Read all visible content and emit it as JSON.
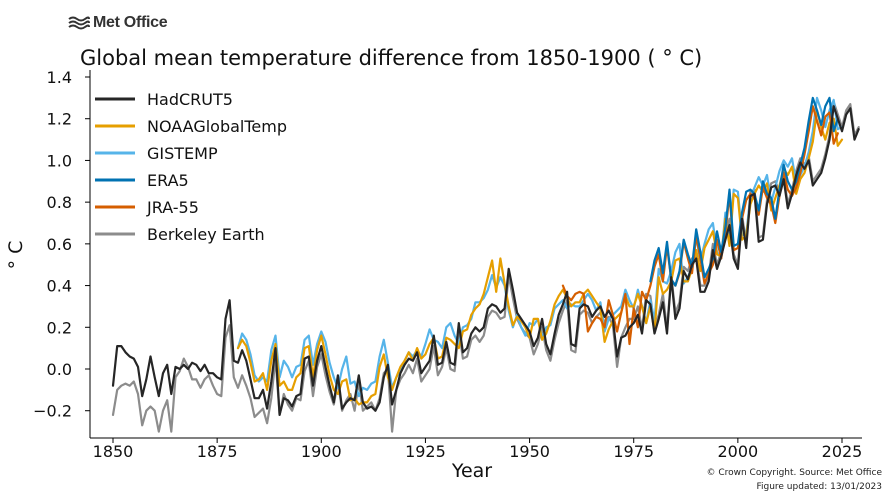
{
  "brand": {
    "name": "Met Office",
    "icon": "met-office-wave-icon"
  },
  "footer": {
    "copyright": "© Crown Copyright. Source: Met Office",
    "updated": "Figure updated: 13/01/2023"
  },
  "chart_data": {
    "type": "line",
    "title": "Global mean temperature difference from 1850-1900 ( ° C)",
    "xlabel": "Year",
    "ylabel": "° C",
    "xlim": [
      1845,
      2027
    ],
    "ylim": [
      -0.3,
      1.4
    ],
    "xticks": [
      1850,
      1875,
      1900,
      1925,
      1950,
      1975,
      2000,
      2025
    ],
    "yticks": [
      -0.2,
      0.0,
      0.2,
      0.4,
      0.6,
      0.8,
      1.0,
      1.2,
      1.4
    ],
    "ytick_labels": [
      "−0.2",
      "0.0",
      "0.2",
      "0.4",
      "0.6",
      "0.8",
      "1.0",
      "1.2",
      "1.4"
    ],
    "grid": false,
    "legend_position": "top-left",
    "series": [
      {
        "name": "HadCRUT5",
        "color": "#262626",
        "start": 1850,
        "values": [
          -0.08,
          0.11,
          0.11,
          0.08,
          0.06,
          0.05,
          0.01,
          -0.13,
          -0.05,
          0.06,
          -0.04,
          -0.13,
          -0.02,
          0.02,
          -0.12,
          0.01,
          0.0,
          0.02,
          0.0,
          0.03,
          0.02,
          -0.01,
          0.02,
          -0.02,
          -0.02,
          -0.04,
          -0.05,
          0.24,
          0.33,
          0.04,
          0.03,
          0.09,
          0.04,
          -0.05,
          -0.14,
          -0.14,
          -0.1,
          -0.19,
          -0.06,
          0.1,
          -0.22,
          -0.14,
          -0.15,
          -0.18,
          -0.13,
          -0.12,
          0.05,
          0.06,
          -0.08,
          0.04,
          0.11,
          0.01,
          -0.08,
          -0.16,
          -0.03,
          -0.19,
          -0.16,
          -0.14,
          -0.15,
          -0.03,
          -0.16,
          -0.19,
          -0.18,
          -0.2,
          -0.16,
          -0.04,
          0.02,
          -0.17,
          -0.1,
          -0.02,
          0.02,
          0.05,
          0.04,
          0.08,
          -0.02,
          0.01,
          0.04,
          0.16,
          0.02,
          0.03,
          0.13,
          0.03,
          0.02,
          0.22,
          0.08,
          0.1,
          0.17,
          0.2,
          0.18,
          0.2,
          0.29,
          0.31,
          0.3,
          0.27,
          0.29,
          0.48,
          0.38,
          0.27,
          0.24,
          0.21,
          0.18,
          0.11,
          0.15,
          0.24,
          0.12,
          0.07,
          0.17,
          0.26,
          0.31,
          0.37,
          0.12,
          0.11,
          0.29,
          0.31,
          0.3,
          0.25,
          0.28,
          0.3,
          0.25,
          0.28,
          0.24,
          0.06,
          0.15,
          0.16,
          0.2,
          0.22,
          0.26,
          0.17,
          0.33,
          0.31,
          0.17,
          0.24,
          0.32,
          0.17,
          0.44,
          0.24,
          0.29,
          0.47,
          0.43,
          0.5,
          0.53,
          0.37,
          0.37,
          0.42,
          0.57,
          0.48,
          0.54,
          0.62,
          0.69,
          0.53,
          0.48,
          0.72,
          0.58,
          0.83,
          0.84,
          0.61,
          0.62,
          0.79,
          0.87,
          0.88,
          0.83,
          0.91,
          0.77,
          0.84,
          0.93,
          0.99,
          0.96,
          1.0,
          0.88,
          0.91,
          0.94,
          1.01,
          1.1,
          1.26,
          1.2,
          1.14,
          1.22,
          1.25,
          1.1,
          1.15
        ]
      },
      {
        "name": "NOAAGlobalTemp",
        "color": "#E69F00",
        "start": 1880,
        "values": [
          0.1,
          0.14,
          0.11,
          0.03,
          -0.06,
          -0.05,
          -0.02,
          -0.1,
          0.04,
          0.12,
          -0.08,
          -0.06,
          -0.1,
          -0.1,
          -0.04,
          -0.02,
          0.1,
          0.11,
          -0.04,
          0.09,
          0.16,
          0.07,
          -0.03,
          -0.1,
          -0.12,
          -0.06,
          -0.05,
          -0.15,
          -0.14,
          -0.17,
          -0.16,
          -0.16,
          -0.13,
          -0.12,
          0.01,
          0.07,
          -0.04,
          -0.1,
          -0.04,
          0.01,
          0.04,
          0.08,
          0.04,
          0.1,
          0.05,
          0.07,
          0.12,
          0.15,
          0.05,
          0.06,
          0.15,
          0.14,
          0.12,
          0.1,
          0.18,
          0.19,
          0.26,
          0.29,
          0.31,
          0.36,
          0.44,
          0.52,
          0.37,
          0.53,
          0.41,
          0.3,
          0.21,
          0.25,
          0.23,
          0.2,
          0.15,
          0.24,
          0.24,
          0.14,
          0.17,
          0.23,
          0.31,
          0.35,
          0.38,
          0.34,
          0.3,
          0.32,
          0.32,
          0.36,
          0.38,
          0.35,
          0.32,
          0.29,
          0.13,
          0.19,
          0.23,
          0.25,
          0.27,
          0.35,
          0.3,
          0.3,
          0.36,
          0.3,
          0.22,
          0.3,
          0.18,
          0.44,
          0.36,
          0.38,
          0.42,
          0.52,
          0.53,
          0.42,
          0.42,
          0.48,
          0.57,
          0.47,
          0.58,
          0.62,
          0.66,
          0.55,
          0.54,
          0.72,
          0.59,
          0.84,
          0.82,
          0.62,
          0.64,
          0.79,
          0.84,
          0.88,
          0.85,
          0.89,
          0.76,
          0.82,
          0.88,
          0.96,
          0.93,
          0.97,
          0.84,
          0.91,
          0.94,
          1.01,
          1.09,
          1.24,
          1.16,
          1.1,
          1.18,
          1.2,
          1.07,
          1.1
        ]
      },
      {
        "name": "GISTEMP",
        "color": "#56B4E9",
        "start": 1880,
        "values": [
          0.1,
          0.17,
          0.14,
          0.07,
          -0.03,
          -0.06,
          -0.04,
          -0.06,
          0.09,
          0.16,
          -0.04,
          0.04,
          0.01,
          -0.04,
          0.01,
          0.02,
          0.14,
          0.16,
          0.02,
          0.12,
          0.18,
          0.13,
          0.03,
          -0.04,
          -0.09,
          0.0,
          0.06,
          -0.07,
          -0.06,
          -0.13,
          -0.09,
          -0.1,
          -0.07,
          -0.06,
          0.06,
          0.14,
          0.03,
          -0.09,
          -0.04,
          -0.01,
          0.04,
          0.08,
          0.06,
          0.09,
          0.06,
          0.12,
          0.19,
          0.14,
          0.13,
          0.1,
          0.2,
          0.22,
          0.16,
          0.12,
          0.2,
          0.21,
          0.24,
          0.32,
          0.32,
          0.34,
          0.38,
          0.45,
          0.39,
          0.44,
          0.4,
          0.28,
          0.2,
          0.26,
          0.2,
          0.16,
          0.22,
          0.21,
          0.24,
          0.15,
          0.2,
          0.21,
          0.29,
          0.31,
          0.33,
          0.29,
          0.31,
          0.3,
          0.3,
          0.33,
          0.36,
          0.33,
          0.28,
          0.32,
          0.18,
          0.24,
          0.26,
          0.28,
          0.3,
          0.38,
          0.33,
          0.29,
          0.38,
          0.3,
          0.22,
          0.33,
          0.23,
          0.48,
          0.42,
          0.41,
          0.47,
          0.56,
          0.6,
          0.41,
          0.44,
          0.49,
          0.63,
          0.52,
          0.6,
          0.67,
          0.7,
          0.56,
          0.53,
          0.75,
          0.61,
          0.86,
          0.85,
          0.64,
          0.65,
          0.82,
          0.87,
          0.92,
          0.88,
          0.93,
          0.8,
          0.87,
          0.95,
          1.0,
          0.97,
          1.01,
          0.89,
          0.93,
          0.97,
          1.04,
          1.14,
          1.3,
          1.24,
          1.16,
          1.24,
          1.29,
          1.15,
          1.16
        ]
      },
      {
        "name": "ERA5",
        "color": "#0072B2",
        "start": 1979,
        "values": [
          0.42,
          0.52,
          0.58,
          0.46,
          0.61,
          0.43,
          0.4,
          0.47,
          0.62,
          0.55,
          0.49,
          0.67,
          0.56,
          0.44,
          0.48,
          0.53,
          0.66,
          0.56,
          0.68,
          0.86,
          0.59,
          0.6,
          0.75,
          0.85,
          0.86,
          0.84,
          0.76,
          0.9,
          0.84,
          0.82,
          0.72,
          0.86,
          0.98,
          0.9,
          0.86,
          0.9,
          0.98,
          1.06,
          1.19,
          1.3,
          1.24,
          1.17,
          1.26,
          1.3,
          1.14,
          1.2
        ]
      },
      {
        "name": "JRA-55",
        "color": "#D55E00",
        "start": 1958,
        "values": [
          0.4,
          0.35,
          0.33,
          0.36,
          0.37,
          0.36,
          0.18,
          0.22,
          0.25,
          0.24,
          0.2,
          0.33,
          0.26,
          0.18,
          0.27,
          0.36,
          0.12,
          0.29,
          0.2,
          0.37,
          0.33,
          0.4,
          0.49,
          0.55,
          0.42,
          0.59,
          0.43,
          0.4,
          0.46,
          0.61,
          0.53,
          0.46,
          0.64,
          0.53,
          0.41,
          0.46,
          0.5,
          0.62,
          0.53,
          0.65,
          0.84,
          0.57,
          0.58,
          0.72,
          0.81,
          0.84,
          0.82,
          0.74,
          0.87,
          0.82,
          0.79,
          0.7,
          0.83,
          0.94,
          0.86,
          0.83,
          0.87,
          0.94,
          1.03,
          1.14,
          1.26,
          1.19,
          1.12,
          1.21,
          1.23,
          1.08,
          1.13
        ]
      },
      {
        "name": "Berkeley Earth",
        "color": "#8c8c8c",
        "start": 1850,
        "values": [
          -0.22,
          -0.1,
          -0.08,
          -0.07,
          -0.08,
          -0.06,
          -0.12,
          -0.27,
          -0.2,
          -0.18,
          -0.2,
          -0.3,
          -0.2,
          -0.15,
          -0.3,
          -0.04,
          -0.01,
          0.05,
          0.01,
          -0.05,
          -0.05,
          -0.09,
          -0.05,
          -0.03,
          -0.08,
          -0.12,
          -0.13,
          0.15,
          0.21,
          -0.04,
          -0.09,
          -0.03,
          -0.08,
          -0.14,
          -0.23,
          -0.21,
          -0.19,
          -0.26,
          -0.14,
          0.05,
          -0.22,
          -0.12,
          -0.17,
          -0.2,
          -0.14,
          -0.15,
          -0.01,
          0.04,
          -0.13,
          0.01,
          0.07,
          -0.03,
          -0.11,
          -0.17,
          -0.06,
          -0.2,
          -0.15,
          -0.12,
          -0.2,
          -0.06,
          -0.2,
          -0.18,
          -0.16,
          -0.2,
          -0.14,
          -0.02,
          0.0,
          -0.3,
          -0.1,
          -0.05,
          -0.02,
          0.02,
          -0.02,
          0.05,
          -0.06,
          -0.03,
          0.0,
          0.11,
          -0.03,
          0.01,
          0.1,
          0.0,
          -0.01,
          0.19,
          0.05,
          0.06,
          0.14,
          0.16,
          0.13,
          0.16,
          0.25,
          0.28,
          0.27,
          0.24,
          0.25,
          0.45,
          0.34,
          0.24,
          0.2,
          0.17,
          0.15,
          0.07,
          0.12,
          0.2,
          0.09,
          0.04,
          0.14,
          0.22,
          0.28,
          0.33,
          0.09,
          0.08,
          0.26,
          0.28,
          0.27,
          0.22,
          0.25,
          0.27,
          0.22,
          0.25,
          0.21,
          0.01,
          0.15,
          0.2,
          0.24,
          0.24,
          0.3,
          0.19,
          0.36,
          0.35,
          0.2,
          0.26,
          0.36,
          0.19,
          0.45,
          0.27,
          0.32,
          0.49,
          0.47,
          0.53,
          0.55,
          0.4,
          0.4,
          0.45,
          0.6,
          0.5,
          0.56,
          0.64,
          0.72,
          0.55,
          0.5,
          0.74,
          0.6,
          0.85,
          0.86,
          0.63,
          0.64,
          0.81,
          0.89,
          0.9,
          0.85,
          0.93,
          0.79,
          0.86,
          0.95,
          1.01,
          0.98,
          1.02,
          0.9,
          0.93,
          0.96,
          1.03,
          1.12,
          1.28,
          1.22,
          1.16,
          1.24,
          1.27,
          1.12,
          1.16
        ]
      }
    ],
    "draw_order": [
      5,
      2,
      1,
      4,
      3,
      0
    ]
  }
}
